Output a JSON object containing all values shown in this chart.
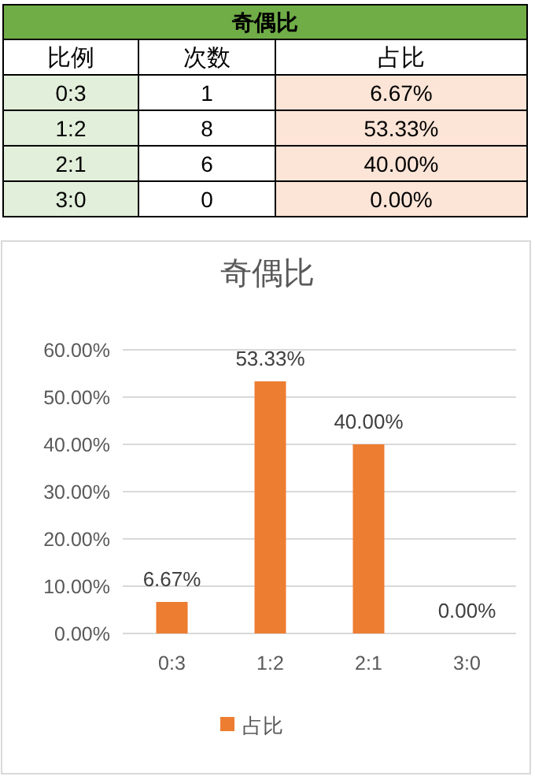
{
  "chart_data": [
    {
      "type": "other",
      "title": "奇偶比",
      "annotations": [
        "比例",
        "次数",
        "占比",
        "0:3",
        "1",
        "6.67%",
        "1:2",
        "8",
        "53.33%",
        "2:1",
        "6",
        "40.00%",
        "3:0",
        "0",
        "0.00%"
      ]
    },
    {
      "type": "bar",
      "title": "奇偶比",
      "categories": [
        "0:3",
        "1:2",
        "2:1",
        "3:0"
      ],
      "series": [
        {
          "name": "占比",
          "color": "#ed7d31",
          "values": [
            6.67,
            53.33,
            40,
            0
          ],
          "value_labels": [
            "6.67%",
            "53.33%",
            "40.00%",
            "0.00%"
          ]
        }
      ],
      "ylim": [
        0,
        60
      ],
      "yticks": [
        {
          "value": 0,
          "label": "0.00%"
        },
        {
          "value": 10,
          "label": "10.00%"
        },
        {
          "value": 20,
          "label": "20.00%"
        },
        {
          "value": 30,
          "label": "30.00%"
        },
        {
          "value": 40,
          "label": "40.00%"
        },
        {
          "value": 50,
          "label": "50.00%"
        },
        {
          "value": 60,
          "label": "60.00%"
        }
      ],
      "grid": "y",
      "legend": "bottom"
    }
  ]
}
